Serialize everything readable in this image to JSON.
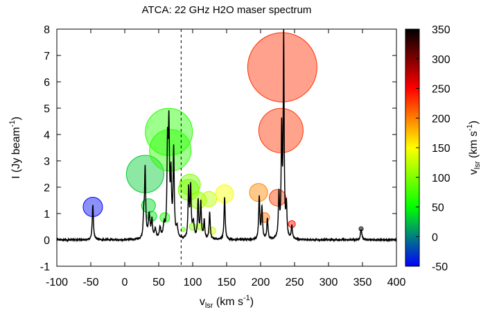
{
  "chart_data": {
    "type": "line",
    "title": "ATCA: 22 GHz H2O maser spectrum",
    "xlabel": {
      "base": "v",
      "sub": "lsr",
      "unit": " (km s",
      "sup": "-1",
      "close": ")"
    },
    "ylabel": {
      "base": "I (Jy beam",
      "sup": "-1",
      "close": ")"
    },
    "colorbar_label": {
      "base": "v",
      "sub": "lsr",
      "unit": " (km s",
      "sup": "-1",
      "close": ")"
    },
    "xlim": [
      -100,
      400
    ],
    "ylim": [
      -1,
      8
    ],
    "x_ticks": [
      -100,
      -50,
      0,
      50,
      100,
      150,
      200,
      250,
      300,
      350,
      400
    ],
    "y_ticks": [
      -1,
      0,
      1,
      2,
      3,
      4,
      5,
      6,
      7,
      8
    ],
    "colorbar": {
      "range": [
        -50,
        350
      ],
      "ticks": [
        -50,
        0,
        50,
        100,
        150,
        200,
        250,
        300,
        350
      ]
    },
    "reference_line_x": 83,
    "peaks": [
      {
        "v": -47,
        "peak": 1.35,
        "w": 1.0
      },
      {
        "v": 28,
        "peak": 0.8,
        "w": 1.0
      },
      {
        "v": 30,
        "peak": 2.6,
        "w": 1.0
      },
      {
        "v": 36,
        "peak": 0.9,
        "w": 1.5
      },
      {
        "v": 40,
        "peak": 0.7,
        "w": 1.0
      },
      {
        "v": 45,
        "peak": 0.35,
        "w": 1.5
      },
      {
        "v": 52,
        "peak": 0.4,
        "w": 1.2
      },
      {
        "v": 58,
        "peak": 0.5,
        "w": 1.5
      },
      {
        "v": 63,
        "peak": 3.3,
        "w": 1.0
      },
      {
        "v": 65,
        "peak": 3.9,
        "w": 1.0
      },
      {
        "v": 68,
        "peak": 2.2,
        "w": 1.0
      },
      {
        "v": 72,
        "peak": 3.3,
        "w": 1.0
      },
      {
        "v": 77,
        "peak": 0.4,
        "w": 1.5
      },
      {
        "v": 94,
        "peak": 1.85,
        "w": 1.0
      },
      {
        "v": 97,
        "peak": 1.9,
        "w": 1.0
      },
      {
        "v": 101,
        "peak": 0.6,
        "w": 1.5
      },
      {
        "v": 108,
        "peak": 1.45,
        "w": 1.0
      },
      {
        "v": 112,
        "peak": 1.35,
        "w": 1.0
      },
      {
        "v": 117,
        "peak": 0.7,
        "w": 1.0
      },
      {
        "v": 125,
        "peak": 1.0,
        "w": 1.0
      },
      {
        "v": 147,
        "peak": 1.6,
        "w": 1.0
      },
      {
        "v": 198,
        "peak": 1.6,
        "w": 1.0
      },
      {
        "v": 202,
        "peak": 1.2,
        "w": 1.0
      },
      {
        "v": 210,
        "peak": 0.8,
        "w": 1.0
      },
      {
        "v": 227,
        "peak": 1.6,
        "w": 1.0
      },
      {
        "v": 231,
        "peak": 4.0,
        "w": 0.9
      },
      {
        "v": 234,
        "peak": 7.6,
        "w": 0.8
      },
      {
        "v": 238,
        "peak": 1.2,
        "w": 1.0
      },
      {
        "v": 246,
        "peak": 0.5,
        "w": 1.0
      },
      {
        "v": 348,
        "peak": 0.4,
        "w": 1.2
      }
    ],
    "markers": [
      {
        "v": -47,
        "i": 1.25,
        "size": 14
      },
      {
        "v": 30,
        "i": 2.5,
        "size": 27
      },
      {
        "v": 35,
        "i": 1.3,
        "size": 10
      },
      {
        "v": 40,
        "i": 0.9,
        "size": 7
      },
      {
        "v": 59,
        "i": 0.85,
        "size": 7
      },
      {
        "v": 67,
        "i": 3.4,
        "size": 30
      },
      {
        "v": 65,
        "i": 4.1,
        "size": 34
      },
      {
        "v": 96,
        "i": 2.1,
        "size": 15
      },
      {
        "v": 94,
        "i": 1.9,
        "size": 15
      },
      {
        "v": 108,
        "i": 1.5,
        "size": 12
      },
      {
        "v": 124,
        "i": 1.55,
        "size": 11
      },
      {
        "v": 147,
        "i": 1.75,
        "size": 13
      },
      {
        "v": 197,
        "i": 1.8,
        "size": 13
      },
      {
        "v": 206,
        "i": 0.85,
        "size": 7
      },
      {
        "v": 225,
        "i": 1.6,
        "size": 12
      },
      {
        "v": 230,
        "i": 4.15,
        "size": 32
      },
      {
        "v": 232,
        "i": 6.55,
        "size": 50
      },
      {
        "v": 246,
        "i": 0.6,
        "size": 5
      },
      {
        "v": 100,
        "i": 0.5,
        "size": 5
      },
      {
        "v": 112,
        "i": 0.5,
        "size": 5
      },
      {
        "v": 129,
        "i": 0.35,
        "size": 5
      },
      {
        "v": 86,
        "i": 0.4,
        "size": 3
      },
      {
        "v": 348,
        "i": 0.42,
        "size": 3
      }
    ],
    "colors": {
      "curve": "#000000",
      "axes": "#000000",
      "ref_line": "#000000",
      "colormap": [
        "#0000ff",
        "#00ff00",
        "#ffff00",
        "#ff0000",
        "#000000"
      ]
    },
    "grid": false,
    "legend": "none"
  }
}
